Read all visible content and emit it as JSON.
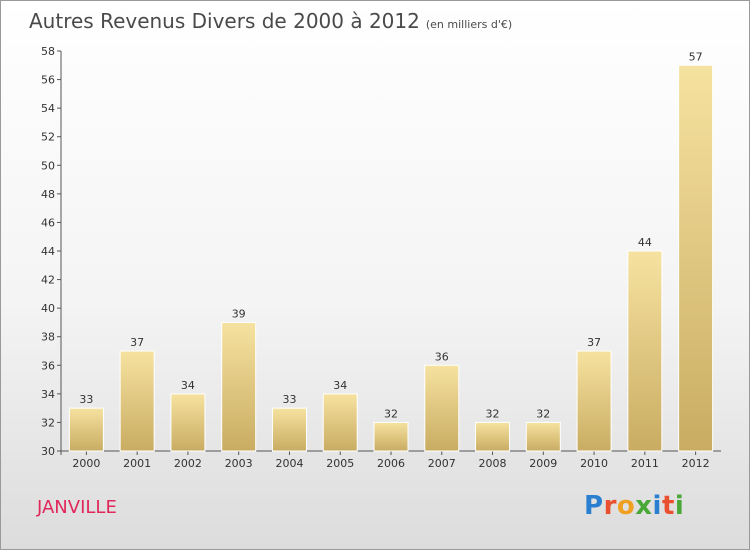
{
  "header": {
    "title": "Autres Revenus Divers de 2000 à 2012",
    "unit": "(en milliers d'€)"
  },
  "location": "JANVILLE",
  "logo": {
    "text": "Proxiti",
    "letters": [
      {
        "ch": "P",
        "color": "#2a7fd0"
      },
      {
        "ch": "r",
        "color": "#e8502f"
      },
      {
        "ch": "o",
        "color": "#f0a020"
      },
      {
        "ch": "x",
        "color": "#4aa838"
      },
      {
        "ch": "i",
        "color": "#2a7fd0"
      },
      {
        "ch": "t",
        "color": "#e8502f"
      },
      {
        "ch": "i",
        "color": "#4aa838"
      }
    ]
  },
  "chart_data": {
    "type": "bar",
    "categories": [
      "2000",
      "2001",
      "2002",
      "2003",
      "2004",
      "2005",
      "2006",
      "2007",
      "2008",
      "2009",
      "2010",
      "2011",
      "2012"
    ],
    "values": [
      33,
      37,
      34,
      39,
      33,
      34,
      32,
      36,
      32,
      32,
      37,
      44,
      57
    ],
    "ylim": [
      30,
      58
    ],
    "yticks": [
      30,
      32,
      34,
      36,
      38,
      40,
      42,
      44,
      46,
      48,
      50,
      52,
      54,
      56,
      58
    ],
    "grid": false,
    "legend": "none",
    "colors": {
      "bar_top": "#f6e2a0",
      "bar_bottom": "#c9ac62",
      "axis": "#555555",
      "label": "#333333"
    }
  }
}
